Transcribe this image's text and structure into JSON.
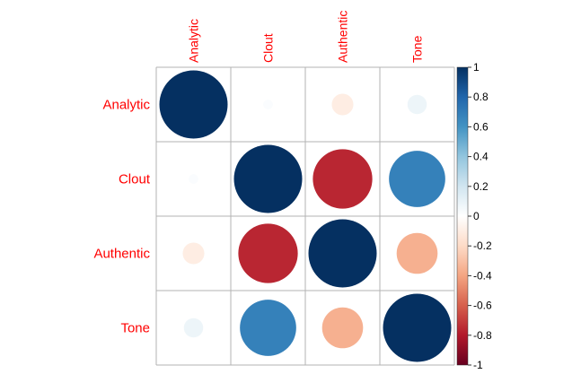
{
  "chart_data": {
    "type": "heatmap",
    "variables": [
      "Analytic",
      "Clout",
      "Authentic",
      "Tone"
    ],
    "matrix": [
      [
        1.0,
        0.02,
        -0.1,
        0.08
      ],
      [
        0.02,
        1.0,
        -0.76,
        0.68
      ],
      [
        -0.1,
        -0.76,
        1.0,
        -0.36
      ],
      [
        0.08,
        0.68,
        -0.36,
        1.0
      ]
    ],
    "colorbar": {
      "range": [
        -1,
        1
      ],
      "ticks": [
        "1",
        "0.8",
        "0.6",
        "0.4",
        "0.2",
        "0",
        "-0.2",
        "-0.4",
        "-0.6",
        "-0.8",
        "-1"
      ]
    },
    "label_color": "#ff0000",
    "grid": true
  }
}
